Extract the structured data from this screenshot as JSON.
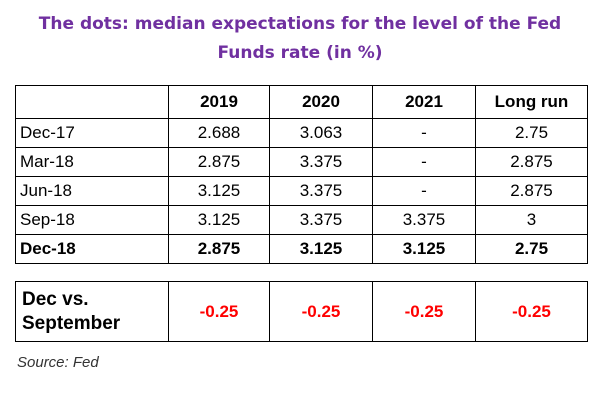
{
  "chart_data": {
    "type": "table",
    "title_line1": "The dots: median expectations for the level of the Fed",
    "title_line2": "Funds rate (in %)",
    "columns": [
      "",
      "2019",
      "2020",
      "2021",
      "Long run"
    ],
    "rows": [
      {
        "label": "Dec-17",
        "values": [
          "2.688",
          "3.063",
          "-",
          "2.75"
        ],
        "bold": false
      },
      {
        "label": "Mar-18",
        "values": [
          "2.875",
          "3.375",
          "-",
          "2.875"
        ],
        "bold": false
      },
      {
        "label": "Jun-18",
        "values": [
          "3.125",
          "3.375",
          "-",
          "2.875"
        ],
        "bold": false
      },
      {
        "label": "Sep-18",
        "values": [
          "3.125",
          "3.375",
          "3.375",
          "3"
        ],
        "bold": false
      },
      {
        "label": "Dec-18",
        "values": [
          "2.875",
          "3.125",
          "3.125",
          "2.75"
        ],
        "bold": true
      }
    ],
    "comparison": {
      "label_line1": "Dec vs.",
      "label_line2": "September",
      "values": [
        "-0.25",
        "-0.25",
        "-0.25",
        "-0.25"
      ]
    },
    "source": "Source: Fed"
  },
  "colors": {
    "title": "#7030a0",
    "negative": "#ff0000"
  }
}
